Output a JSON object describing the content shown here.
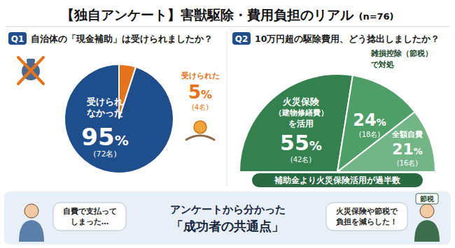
{
  "header": {
    "title": "【独自アンケート】害獣駆除・費用負担のリアル",
    "sample": "(n=76)"
  },
  "chart_data": [
    {
      "type": "pie",
      "label": "Q1",
      "title": "自治体の「現金補助」は受けられましたか？",
      "categories": [
        "受けられた",
        "受けられなかった"
      ],
      "values": [
        5,
        95
      ],
      "value_labels": [
        "5%",
        "95%"
      ],
      "counts": [
        "(4名)",
        "(72名)"
      ],
      "colors": [
        "#e8731a",
        "#1f4e8c"
      ],
      "data_labels": true
    },
    {
      "type": "semicircle",
      "label": "Q2",
      "title": "10万円超の駆除費用、どう捻出しましたか？",
      "categories": [
        "火災保険\n（建物修繕費）\nを活用",
        "雑損控除（節税）\nで対処",
        "全額自費"
      ],
      "values": [
        55,
        24,
        21
      ],
      "value_labels": [
        "55%",
        "24%",
        "21%"
      ],
      "counts": [
        "(42名)",
        "(18名)",
        "(16名)"
      ],
      "colors": [
        "#35804f",
        "#4f9d67",
        "#72b587"
      ],
      "annotation": "補助金より火災保険活用が過半数",
      "data_labels": true
    }
  ],
  "footer": {
    "headline": [
      "アンケートから分かった",
      "「成功者の共通点」"
    ],
    "left_bubble": [
      "自費で支払って",
      "しまった…"
    ],
    "right_bubble": [
      "火災保険や節税で",
      "負担を減らした！"
    ],
    "tag": "節税"
  }
}
